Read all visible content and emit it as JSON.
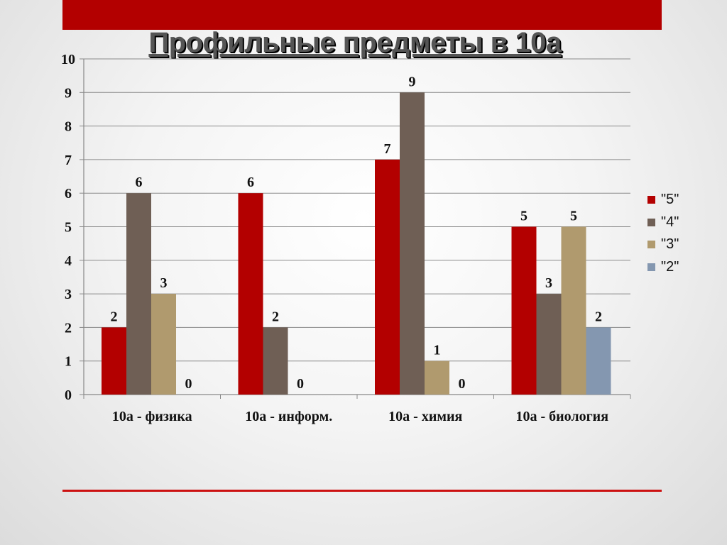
{
  "slide": {
    "title": "Профильные предметы в 10а",
    "accent_color": "#b30000"
  },
  "chart_data": {
    "type": "bar",
    "title": "Профильные предметы в 10а",
    "categories": [
      "10а - физика",
      "10а - информ.",
      "10а - химия",
      "10а - биология"
    ],
    "series": [
      {
        "name": "\"5\"",
        "values": [
          2,
          6,
          7,
          5
        ],
        "color": "#b30000"
      },
      {
        "name": "\"4\"",
        "values": [
          6,
          2,
          9,
          3
        ],
        "color": "#6f5f55"
      },
      {
        "name": "\"3\"",
        "values": [
          3,
          0,
          1,
          5
        ],
        "color": "#b09a6e"
      },
      {
        "name": "\"2\"",
        "values": [
          0,
          0,
          0,
          2
        ],
        "color": "#8497b0"
      }
    ],
    "data_labels": [
      [
        "2",
        "6",
        "7",
        "5"
      ],
      [
        "6",
        "2",
        "9",
        "3"
      ],
      [
        "3",
        "0",
        "1",
        "5"
      ],
      [
        "0",
        "",
        "0",
        "2"
      ]
    ],
    "ylim": [
      0,
      10
    ],
    "yticks": [
      "0",
      "1",
      "2",
      "3",
      "4",
      "5",
      "6",
      "7",
      "8",
      "9",
      "10"
    ],
    "grid": true,
    "legend_position": "right"
  }
}
